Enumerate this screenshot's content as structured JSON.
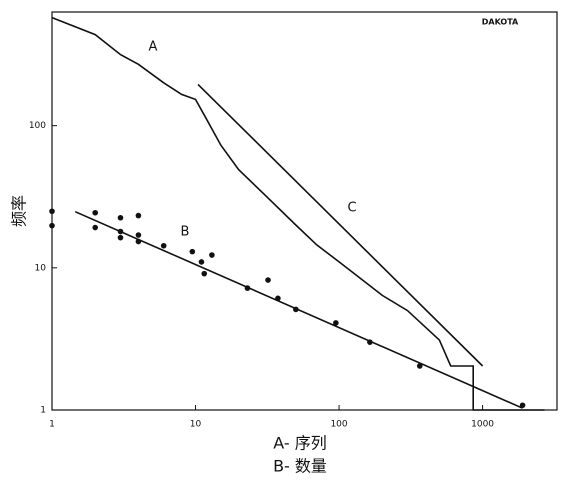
{
  "chart_data": {
    "type": "line",
    "title": "DAKOTA",
    "y_label": "频率",
    "x_label": [
      "A- 序列",
      "B- 数量"
    ],
    "annotations": [
      "A",
      "B",
      "C"
    ],
    "log_x": true,
    "log_y": true,
    "xlim": [
      1,
      3300
    ],
    "ylim": [
      1,
      630
    ],
    "xticks": [
      1,
      10,
      100,
      1000
    ],
    "yticks": [
      1,
      10,
      100
    ],
    "series": [
      {
        "name": "A",
        "style": "line",
        "color": "#111111",
        "x": [
          1,
          2,
          3,
          4,
          6,
          8,
          10,
          12,
          15,
          20,
          30,
          50,
          70,
          100,
          200,
          300,
          500,
          600,
          860,
          860,
          2700
        ],
        "values": [
          575,
          437,
          316,
          270,
          200,
          166,
          153,
          110,
          73,
          49,
          33,
          20,
          14.5,
          11,
          6.4,
          5,
          3.1,
          2.04,
          2.04,
          1,
          1
        ]
      },
      {
        "name": "C",
        "style": "line",
        "color": "#111111",
        "x": [
          10.4,
          1000
        ],
        "values": [
          195,
          2.04
        ]
      },
      {
        "name": "B",
        "style": "line",
        "color": "#111111",
        "x": [
          1.45,
          1900
        ],
        "values": [
          24.8,
          1.03
        ]
      },
      {
        "name": "B",
        "style": "scatter",
        "color": "#111111",
        "x": [
          1,
          1,
          2,
          2,
          3,
          3,
          3,
          4,
          4,
          4,
          6,
          9.5,
          11,
          11.5,
          13,
          23,
          32,
          37.5,
          50,
          95,
          164,
          365,
          1900
        ],
        "values": [
          25,
          19.8,
          24.4,
          19.2,
          22.5,
          18,
          16.3,
          23.3,
          17,
          15.3,
          14.3,
          13,
          11,
          9.1,
          12.3,
          7.2,
          8.2,
          6.1,
          5.1,
          4.1,
          3.0,
          2.04,
          1.08
        ]
      }
    ]
  }
}
